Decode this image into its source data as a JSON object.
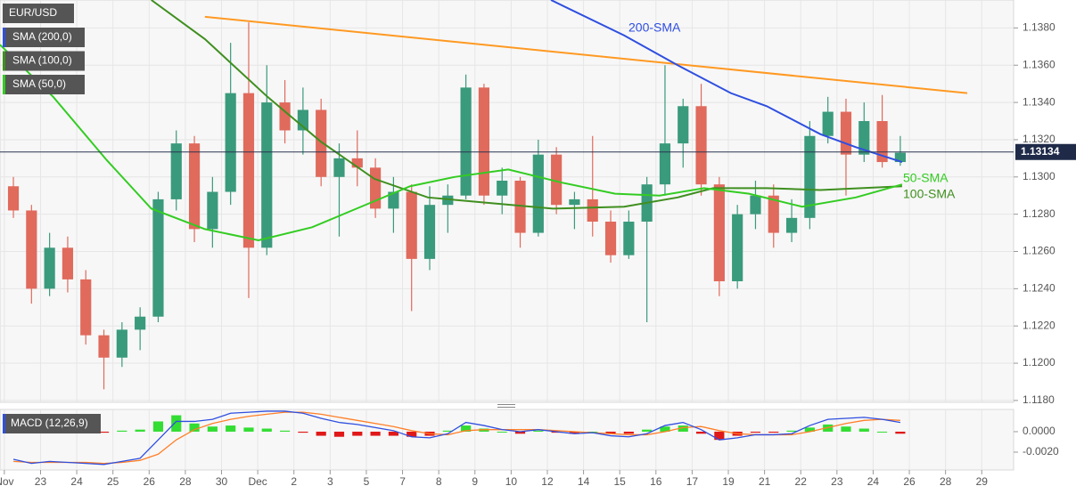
{
  "chart_data": [
    {
      "type": "candlestick",
      "title": "EUR/USD",
      "x": [
        0.25,
        0.75,
        1.25,
        1.75,
        2.25,
        2.75,
        3.25,
        3.75,
        4.25,
        4.75,
        5.25,
        5.75,
        6.25,
        6.75,
        7.25,
        7.75,
        8.25,
        8.75,
        9.25,
        9.75,
        10.25,
        10.75,
        11.25,
        11.75,
        12.25,
        12.75,
        13.25,
        13.75,
        14.25,
        14.75,
        15.25,
        15.75,
        16.25,
        16.75,
        17.25,
        17.75,
        18.25,
        18.75,
        19.25,
        19.75,
        20.25,
        20.75,
        21.25,
        21.75,
        22.25,
        22.75,
        23.25,
        23.75,
        24.25,
        24.75
      ],
      "open": [
        1.1295,
        1.1282,
        1.124,
        1.1262,
        1.1245,
        1.1215,
        1.1203,
        1.1218,
        1.1225,
        1.1288,
        1.1318,
        1.1272,
        1.1292,
        1.1345,
        1.1262,
        1.134,
        1.1325,
        1.1336,
        1.13,
        1.131,
        1.1305,
        1.1283,
        1.1292,
        1.1256,
        1.1285,
        1.129,
        1.1348,
        1.129,
        1.1298,
        1.127,
        1.1312,
        1.1285,
        1.1288,
        1.1276,
        1.1258,
        1.1276,
        1.1296,
        1.1318,
        1.1338,
        1.1296,
        1.1244,
        1.128,
        1.129,
        1.127,
        1.1278,
        1.1322,
        1.1335,
        1.1312,
        1.133,
        1.1308
      ],
      "high": [
        1.13,
        1.1285,
        1.127,
        1.1268,
        1.125,
        1.1218,
        1.1222,
        1.123,
        1.1292,
        1.1325,
        1.1322,
        1.13,
        1.1372,
        1.1383,
        1.136,
        1.1352,
        1.1348,
        1.1342,
        1.1318,
        1.1325,
        1.131,
        1.13,
        1.1296,
        1.1295,
        1.1296,
        1.1355,
        1.135,
        1.1305,
        1.13,
        1.132,
        1.1316,
        1.1292,
        1.1322,
        1.1282,
        1.1282,
        1.13,
        1.136,
        1.1342,
        1.135,
        1.13,
        1.1285,
        1.1298,
        1.1296,
        1.1288,
        1.133,
        1.1343,
        1.1342,
        1.134,
        1.1344,
        1.1322
      ],
      "low": [
        1.1278,
        1.1232,
        1.1236,
        1.1238,
        1.121,
        1.1186,
        1.1198,
        1.1207,
        1.1222,
        1.1282,
        1.1265,
        1.1262,
        1.1285,
        1.1235,
        1.1258,
        1.1318,
        1.1312,
        1.1295,
        1.1268,
        1.1295,
        1.1278,
        1.127,
        1.1228,
        1.125,
        1.127,
        1.1288,
        1.1285,
        1.128,
        1.1262,
        1.1268,
        1.128,
        1.1272,
        1.1268,
        1.1254,
        1.1256,
        1.1222,
        1.129,
        1.1305,
        1.129,
        1.1236,
        1.124,
        1.1272,
        1.1262,
        1.1265,
        1.1272,
        1.1318,
        1.129,
        1.1308,
        1.1305,
        1.1306
      ],
      "close": [
        1.1282,
        1.124,
        1.1262,
        1.1245,
        1.1215,
        1.1203,
        1.1218,
        1.1225,
        1.1288,
        1.1318,
        1.1272,
        1.1292,
        1.1345,
        1.1262,
        1.134,
        1.1325,
        1.1336,
        1.13,
        1.131,
        1.1305,
        1.1283,
        1.1292,
        1.1256,
        1.1285,
        1.129,
        1.1348,
        1.129,
        1.1298,
        1.127,
        1.1312,
        1.1285,
        1.1288,
        1.1276,
        1.1258,
        1.1276,
        1.1296,
        1.1318,
        1.1338,
        1.1296,
        1.1244,
        1.128,
        1.129,
        1.127,
        1.1278,
        1.1322,
        1.1335,
        1.1312,
        1.133,
        1.1308,
        1.1313
      ],
      "up_color": "#3a9a7c",
      "down_color": "#e06a5c",
      "overlays": [
        {
          "name": "SMA (200,0)",
          "label": "200-SMA",
          "color": "#2f4fe0",
          "x": [
            15.1,
            17.12,
            18.6,
            20.07,
            21.06,
            22.54,
            23.52,
            24.8
          ],
          "values": [
            1.1395,
            1.1376,
            1.136,
            1.1345,
            1.1338,
            1.1323,
            1.1316,
            1.1308
          ]
        },
        {
          "name": "SMA (100,0)",
          "label": "100-SMA",
          "color": "#3f8f1f",
          "x": [
            4.06,
            5.54,
            7.27,
            8.74,
            10.22,
            11.7,
            13.42,
            15.15,
            17.12,
            18.6,
            19.58,
            21.06,
            22.54,
            24.8
          ],
          "values": [
            1.1395,
            1.1374,
            1.1343,
            1.1319,
            1.1299,
            1.1289,
            1.1286,
            1.1283,
            1.1284,
            1.1289,
            1.1294,
            1.1294,
            1.1293,
            1.1295
          ]
        },
        {
          "name": "SMA (50,0)",
          "label": "50-SMA",
          "color": "#33cc22",
          "x": [
            -0.12,
            1.35,
            2.83,
            4.06,
            5.54,
            7.02,
            8.5,
            9.73,
            11.21,
            12.44,
            13.92,
            15.39,
            16.87,
            18.1,
            19.33,
            20.57,
            22.04,
            23.52,
            24.8
          ],
          "values": [
            1.1371,
            1.1343,
            1.1309,
            1.1283,
            1.1272,
            1.1266,
            1.1273,
            1.1283,
            1.1295,
            1.13,
            1.1304,
            1.1297,
            1.1291,
            1.129,
            1.1294,
            1.1291,
            1.1284,
            1.1289,
            1.1296
          ]
        }
      ],
      "trendline": {
        "color": "#ff9922",
        "x": [
          5.54,
          26.6
        ],
        "values": [
          1.1386,
          1.1345
        ]
      },
      "last_price": 1.13134,
      "xlim": [
        -0.12,
        27.88
      ],
      "ylim": [
        1.1179,
        1.1395
      ],
      "xticks": [
        {
          "value": 0,
          "label": "Nov"
        },
        {
          "value": 1,
          "label": "23"
        },
        {
          "value": 2,
          "label": "24"
        },
        {
          "value": 3,
          "label": "25"
        },
        {
          "value": 4,
          "label": "26"
        },
        {
          "value": 5,
          "label": "28"
        },
        {
          "value": 6,
          "label": "30"
        },
        {
          "value": 7,
          "label": "Dec"
        },
        {
          "value": 8,
          "label": "2"
        },
        {
          "value": 9,
          "label": "3"
        },
        {
          "value": 10,
          "label": "5"
        },
        {
          "value": 11,
          "label": "7"
        },
        {
          "value": 12,
          "label": "8"
        },
        {
          "value": 13,
          "label": "9"
        },
        {
          "value": 14,
          "label": "10"
        },
        {
          "value": 15,
          "label": "12"
        },
        {
          "value": 16,
          "label": "14"
        },
        {
          "value": 17,
          "label": "15"
        },
        {
          "value": 18,
          "label": "16"
        },
        {
          "value": 19,
          "label": "17"
        },
        {
          "value": 20,
          "label": "19"
        },
        {
          "value": 21,
          "label": "21"
        },
        {
          "value": 22,
          "label": "22"
        },
        {
          "value": 23,
          "label": "23"
        },
        {
          "value": 24,
          "label": "24"
        },
        {
          "value": 25,
          "label": "26"
        },
        {
          "value": 26,
          "label": "28"
        },
        {
          "value": 27,
          "label": "29"
        }
      ],
      "yticks": [
        {
          "value": 1.118,
          "label": "1.1180"
        },
        {
          "value": 1.12,
          "label": "1.1200"
        },
        {
          "value": 1.122,
          "label": "1.1220"
        },
        {
          "value": 1.124,
          "label": "1.1240"
        },
        {
          "value": 1.126,
          "label": "1.1260"
        },
        {
          "value": 1.128,
          "label": "1.1280"
        },
        {
          "value": 1.13,
          "label": "1.1300"
        },
        {
          "value": 1.132,
          "label": "1.1320"
        },
        {
          "value": 1.134,
          "label": "1.1340"
        },
        {
          "value": 1.136,
          "label": "1.1360"
        },
        {
          "value": 1.138,
          "label": "1.1380"
        }
      ],
      "grid": true
    },
    {
      "type": "macd",
      "title": "MACD (12,26,9)",
      "x": [
        0.25,
        0.75,
        1.25,
        1.75,
        2.25,
        2.75,
        3.25,
        3.75,
        4.25,
        4.75,
        5.25,
        5.75,
        6.25,
        6.75,
        7.25,
        7.75,
        8.25,
        8.75,
        9.25,
        9.75,
        10.25,
        10.75,
        11.25,
        11.75,
        12.25,
        12.75,
        13.25,
        13.75,
        14.25,
        14.75,
        15.25,
        15.75,
        16.25,
        16.75,
        17.25,
        17.75,
        18.25,
        18.75,
        19.25,
        19.75,
        20.25,
        20.75,
        21.25,
        21.75,
        22.25,
        22.75,
        23.25,
        23.75,
        24.25,
        24.75
      ],
      "macd": [
        -0.0027,
        -0.0031,
        -0.0029,
        -0.003,
        -0.0031,
        -0.0032,
        -0.0029,
        -0.0026,
        -0.0008,
        0.001,
        0.001,
        0.0012,
        0.0018,
        0.0019,
        0.002,
        0.002,
        0.0018,
        0.0013,
        0.0009,
        0.0007,
        0.0004,
        0.0001,
        -0.0005,
        -0.0006,
        -0.0002,
        0.0009,
        0.0006,
        0.0002,
        0.0,
        0.0002,
        0.0,
        -0.0002,
        -0.0001,
        -0.0004,
        -0.0005,
        -0.0002,
        0.0006,
        0.0009,
        0.0002,
        -0.0008,
        -0.0006,
        -0.0003,
        -0.0003,
        -0.0002,
        0.0006,
        0.0012,
        0.0013,
        0.0014,
        0.0012,
        0.0009
      ],
      "signal": [
        -0.0029,
        -0.003,
        -0.003,
        -0.003,
        -0.003,
        -0.0031,
        -0.003,
        -0.0028,
        -0.0022,
        -0.0008,
        0.0002,
        0.0008,
        0.0012,
        0.0015,
        0.0017,
        0.0019,
        0.0019,
        0.0017,
        0.0014,
        0.0011,
        0.0008,
        0.0005,
        0.0001,
        -0.0002,
        -0.0003,
        0.0001,
        0.0002,
        0.0002,
        0.0002,
        0.0002,
        0.0001,
        0.0,
        -0.0001,
        -0.0002,
        -0.0003,
        -0.0003,
        0.0,
        0.0004,
        0.0005,
        0.0001,
        -0.0002,
        -0.0003,
        -0.0003,
        -0.0003,
        0.0,
        0.0004,
        0.0008,
        0.0011,
        0.0012,
        0.0011
      ],
      "histogram": [
        0.0001,
        -0.0001,
        0.0001,
        0.0,
        -0.0001,
        -0.0001,
        0.0001,
        0.0002,
        0.001,
        0.0016,
        0.0008,
        0.0005,
        0.0006,
        0.0004,
        0.0003,
        0.0001,
        -0.0001,
        -0.0004,
        -0.0005,
        -0.0004,
        -0.0004,
        -0.0004,
        -0.0005,
        -0.0004,
        0.0001,
        0.0006,
        0.0003,
        0.0,
        -0.0002,
        0.0001,
        -0.0001,
        -0.0002,
        0.0,
        -0.0002,
        -0.0002,
        0.0002,
        0.0005,
        0.0006,
        -0.0002,
        -0.0008,
        -0.0004,
        -0.0001,
        -0.0001,
        0.0001,
        0.0004,
        0.0007,
        0.0005,
        0.0003,
        0.0,
        -0.0002
      ],
      "macd_color": "#2f4fe0",
      "signal_color": "#ff7f27",
      "up_color": "#33dd33",
      "down_color": "#e01818",
      "xlim": [
        -0.12,
        27.88
      ],
      "ylim": [
        -0.00374,
        0.00217
      ],
      "yticks": [
        {
          "value": 0,
          "label": "0.0000"
        },
        {
          "value": -0.002,
          "label": "-0.0020"
        }
      ]
    }
  ]
}
